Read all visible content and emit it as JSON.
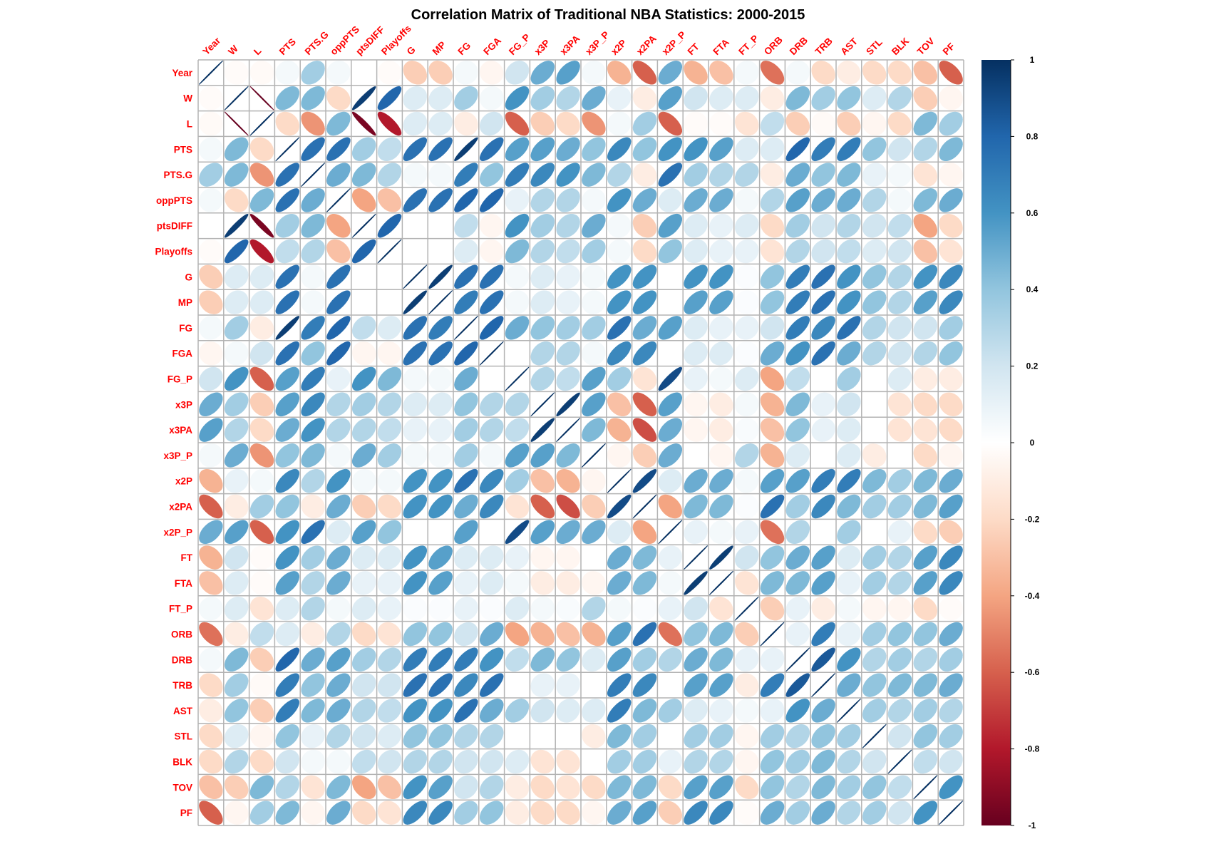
{
  "chart_data": {
    "type": "heatmap",
    "title": "Correlation Matrix of Traditional NBA Statistics: 2000-2015",
    "glyph": "ellipse",
    "variables": [
      "Year",
      "W",
      "L",
      "PTS",
      "PTS.G",
      "oppPTS",
      "ptsDIFF",
      "Playoffs",
      "G",
      "MP",
      "FG",
      "FGA",
      "FG_P",
      "x3P",
      "x3PA",
      "x3P_P",
      "x2P",
      "x2PA",
      "x2P_P",
      "FT",
      "FTA",
      "FT_P",
      "ORB",
      "DRB",
      "TRB",
      "AST",
      "STL",
      "BLK",
      "TOV",
      "PF"
    ],
    "matrix": [
      [
        1,
        -0.02,
        -0.03,
        0.05,
        0.35,
        0.05,
        0,
        -0.02,
        -0.25,
        -0.25,
        0.05,
        -0.05,
        0.2,
        0.5,
        0.55,
        0.05,
        -0.35,
        -0.6,
        0.5,
        -0.35,
        -0.3,
        0.05,
        -0.55,
        0.05,
        -0.2,
        -0.1,
        -0.2,
        -0.2,
        -0.3,
        -0.6
      ],
      [
        -0.02,
        1,
        -1,
        0.45,
        0.45,
        -0.2,
        0.95,
        0.8,
        0.15,
        0.15,
        0.35,
        0.05,
        0.6,
        0.35,
        0.3,
        0.5,
        0.1,
        -0.1,
        0.55,
        0.2,
        0.15,
        0.15,
        -0.1,
        0.45,
        0.35,
        0.4,
        0.15,
        0.3,
        -0.25,
        -0.05
      ],
      [
        -0.03,
        -1,
        1,
        -0.2,
        -0.45,
        0.45,
        -0.95,
        -0.8,
        0.15,
        0.15,
        -0.1,
        0.2,
        -0.6,
        -0.25,
        -0.2,
        -0.45,
        0.05,
        0.35,
        -0.6,
        -0.02,
        -0.02,
        -0.15,
        0.25,
        -0.25,
        -0.03,
        -0.25,
        -0.05,
        -0.2,
        0.45,
        0.35
      ],
      [
        0.05,
        0.45,
        -0.2,
        1,
        0.75,
        0.75,
        0.35,
        0.25,
        0.75,
        0.75,
        0.95,
        0.75,
        0.55,
        0.55,
        0.5,
        0.4,
        0.65,
        0.4,
        0.6,
        0.6,
        0.55,
        0.15,
        0.15,
        0.8,
        0.7,
        0.7,
        0.4,
        0.2,
        0.3,
        0.45
      ],
      [
        0.35,
        0.45,
        -0.45,
        0.75,
        1,
        0.5,
        0.45,
        0.3,
        0.05,
        0.05,
        0.7,
        0.4,
        0.7,
        0.65,
        0.6,
        0.45,
        0.3,
        -0.1,
        0.75,
        0.35,
        0.3,
        0.3,
        -0.1,
        0.5,
        0.4,
        0.45,
        0.1,
        0.05,
        -0.15,
        -0.05
      ],
      [
        0.05,
        -0.2,
        0.45,
        0.75,
        0.5,
        1,
        -0.4,
        -0.3,
        0.75,
        0.75,
        0.8,
        0.8,
        0.1,
        0.3,
        0.3,
        0.05,
        0.6,
        0.5,
        0.15,
        0.5,
        0.5,
        0.05,
        0.3,
        0.55,
        0.5,
        0.5,
        0.3,
        0.05,
        0.45,
        0.5
      ],
      [
        0,
        0.95,
        -0.95,
        0.35,
        0.45,
        -0.4,
        1,
        0.8,
        0,
        0,
        0.25,
        -0.05,
        0.6,
        0.35,
        0.3,
        0.5,
        0.05,
        -0.25,
        0.55,
        0.15,
        0.1,
        0.15,
        -0.2,
        0.35,
        0.2,
        0.3,
        0.2,
        0.25,
        -0.4,
        -0.2
      ],
      [
        -0.02,
        0.8,
        -0.8,
        0.25,
        0.3,
        -0.3,
        0.8,
        1,
        0,
        0,
        0.15,
        -0.05,
        0.45,
        0.3,
        0.25,
        0.35,
        0.05,
        -0.2,
        0.4,
        0.15,
        0.1,
        0.1,
        -0.15,
        0.3,
        0.2,
        0.25,
        0.15,
        0.2,
        -0.3,
        -0.15
      ],
      [
        -0.25,
        0.15,
        0.15,
        0.75,
        0.05,
        0.75,
        0,
        0,
        1,
        0.95,
        0.75,
        0.75,
        0.05,
        0.15,
        0.1,
        0.05,
        0.6,
        0.6,
        0,
        0.6,
        0.6,
        0.02,
        0.4,
        0.7,
        0.75,
        0.6,
        0.4,
        0.3,
        0.6,
        0.65
      ],
      [
        -0.25,
        0.15,
        0.15,
        0.75,
        0.05,
        0.75,
        0,
        0,
        0.95,
        1,
        0.7,
        0.75,
        0.05,
        0.15,
        0.1,
        0.05,
        0.6,
        0.6,
        0,
        0.55,
        0.55,
        0.02,
        0.4,
        0.7,
        0.75,
        0.6,
        0.4,
        0.3,
        0.55,
        0.65
      ],
      [
        0.05,
        0.35,
        -0.1,
        0.95,
        0.7,
        0.8,
        0.25,
        0.15,
        0.75,
        0.7,
        1,
        0.8,
        0.5,
        0.4,
        0.35,
        0.35,
        0.75,
        0.5,
        0.55,
        0.15,
        0.1,
        0.1,
        0.2,
        0.7,
        0.65,
        0.75,
        0.3,
        0.2,
        0.2,
        0.35
      ],
      [
        -0.05,
        0.05,
        0.2,
        0.75,
        0.4,
        0.8,
        -0.05,
        -0.05,
        0.75,
        0.75,
        0.8,
        1,
        0,
        0.3,
        0.3,
        0.05,
        0.65,
        0.65,
        0,
        0.15,
        0.15,
        0.02,
        0.5,
        0.6,
        0.75,
        0.5,
        0.3,
        0.2,
        0.3,
        0.4
      ],
      [
        0.2,
        0.6,
        -0.6,
        0.55,
        0.7,
        0.1,
        0.6,
        0.45,
        0.05,
        0.05,
        0.5,
        0,
        1,
        0.3,
        0.25,
        0.55,
        0.35,
        -0.15,
        0.9,
        0.1,
        0.05,
        0.15,
        -0.4,
        0.25,
        0,
        0.35,
        0,
        0.15,
        -0.1,
        -0.1
      ],
      [
        0.5,
        0.35,
        -0.25,
        0.55,
        0.65,
        0.3,
        0.35,
        0.3,
        0.15,
        0.15,
        0.4,
        0.3,
        0.3,
        1,
        0.95,
        0.55,
        -0.3,
        -0.6,
        0.55,
        -0.05,
        -0.1,
        0.05,
        -0.35,
        0.45,
        0.1,
        0.2,
        0,
        -0.15,
        -0.2,
        -0.2
      ],
      [
        0.55,
        0.3,
        -0.2,
        0.5,
        0.6,
        0.3,
        0.3,
        0.25,
        0.1,
        0.1,
        0.35,
        0.3,
        0.25,
        0.95,
        1,
        0.45,
        -0.35,
        -0.65,
        0.5,
        -0.05,
        -0.1,
        0.03,
        -0.3,
        0.4,
        0.1,
        0.15,
        0,
        -0.15,
        -0.15,
        -0.2
      ],
      [
        0.05,
        0.5,
        -0.45,
        0.4,
        0.45,
        0.05,
        0.5,
        0.35,
        0.05,
        0.05,
        0.35,
        0.05,
        0.55,
        0.55,
        0.45,
        1,
        -0.05,
        -0.25,
        0.5,
        0,
        -0.05,
        0.3,
        -0.35,
        0.15,
        0,
        0.15,
        -0.1,
        0,
        -0.2,
        -0.05
      ],
      [
        -0.35,
        0.1,
        0.05,
        0.65,
        0.3,
        0.6,
        0.05,
        0.05,
        0.6,
        0.6,
        0.75,
        0.65,
        0.35,
        -0.3,
        -0.35,
        -0.05,
        1,
        0.9,
        0.15,
        0.5,
        0.5,
        0.05,
        0.55,
        0.55,
        0.7,
        0.7,
        0.45,
        0.35,
        0.45,
        0.5
      ],
      [
        -0.6,
        -0.1,
        0.35,
        0.4,
        -0.1,
        0.5,
        -0.25,
        -0.2,
        0.6,
        0.6,
        0.5,
        0.65,
        -0.15,
        -0.6,
        -0.65,
        -0.25,
        0.9,
        1,
        -0.4,
        0.45,
        0.45,
        0.02,
        0.75,
        0.35,
        0.65,
        0.45,
        0.35,
        0.35,
        0.45,
        0.55
      ],
      [
        0.5,
        0.55,
        -0.6,
        0.6,
        0.75,
        0.15,
        0.55,
        0.4,
        0,
        0,
        0.55,
        0,
        0.9,
        0.55,
        0.5,
        0.5,
        0.15,
        -0.4,
        1,
        0.1,
        0.05,
        0.1,
        -0.55,
        0.3,
        0,
        0.35,
        0,
        0.1,
        -0.2,
        -0.25
      ],
      [
        -0.35,
        0.2,
        -0.02,
        0.6,
        0.35,
        0.5,
        0.15,
        0.15,
        0.6,
        0.55,
        0.15,
        0.15,
        0.1,
        -0.05,
        -0.05,
        0,
        0.5,
        0.45,
        0.1,
        1,
        0.95,
        0.2,
        0.4,
        0.5,
        0.55,
        0.15,
        0.35,
        0.3,
        0.55,
        0.65
      ],
      [
        -0.3,
        0.15,
        -0.02,
        0.55,
        0.3,
        0.5,
        0.1,
        0.1,
        0.6,
        0.55,
        0.1,
        0.15,
        0.05,
        -0.1,
        -0.1,
        -0.05,
        0.5,
        0.45,
        0.05,
        0.95,
        1,
        -0.15,
        0.45,
        0.45,
        0.55,
        0.1,
        0.35,
        0.3,
        0.55,
        0.65
      ],
      [
        0.05,
        0.15,
        -0.15,
        0.15,
        0.3,
        0.05,
        0.15,
        0.1,
        0.02,
        0.02,
        0.1,
        0.02,
        0.15,
        0.05,
        0.03,
        0.3,
        0.05,
        0.02,
        0.1,
        0.2,
        -0.15,
        1,
        -0.25,
        0.1,
        -0.1,
        0.05,
        -0.05,
        -0.05,
        -0.2,
        -0.02
      ],
      [
        -0.55,
        -0.1,
        0.25,
        0.15,
        -0.1,
        0.3,
        -0.2,
        -0.15,
        0.4,
        0.4,
        0.2,
        0.5,
        -0.4,
        -0.35,
        -0.3,
        -0.35,
        0.55,
        0.75,
        -0.55,
        0.4,
        0.45,
        -0.25,
        1,
        0.1,
        0.7,
        0.1,
        0.35,
        0.4,
        0.4,
        0.5
      ],
      [
        0.05,
        0.45,
        -0.25,
        0.8,
        0.5,
        0.55,
        0.35,
        0.3,
        0.7,
        0.7,
        0.7,
        0.6,
        0.25,
        0.45,
        0.4,
        0.15,
        0.55,
        0.35,
        0.3,
        0.5,
        0.45,
        0.1,
        0.1,
        1,
        0.85,
        0.6,
        0.3,
        0.35,
        0.3,
        0.35
      ],
      [
        -0.2,
        0.35,
        -0.03,
        0.7,
        0.4,
        0.5,
        0.2,
        0.2,
        0.75,
        0.75,
        0.65,
        0.75,
        0,
        0.1,
        0.1,
        0,
        0.7,
        0.65,
        0,
        0.55,
        0.55,
        -0.1,
        0.7,
        0.85,
        1,
        0.5,
        0.4,
        0.45,
        0.45,
        0.5
      ],
      [
        -0.1,
        0.4,
        -0.25,
        0.7,
        0.45,
        0.5,
        0.3,
        0.25,
        0.6,
        0.6,
        0.75,
        0.5,
        0.35,
        0.2,
        0.15,
        0.15,
        0.7,
        0.45,
        0.35,
        0.15,
        0.1,
        0.05,
        0.1,
        0.6,
        0.5,
        1,
        0.35,
        0.3,
        0.35,
        0.3
      ],
      [
        -0.2,
        0.15,
        -0.05,
        0.4,
        0.1,
        0.3,
        0.2,
        0.15,
        0.4,
        0.4,
        0.3,
        0.3,
        0,
        0,
        0,
        -0.1,
        0.45,
        0.35,
        0,
        0.35,
        0.35,
        -0.05,
        0.35,
        0.3,
        0.4,
        0.35,
        1,
        0.2,
        0.4,
        0.35
      ],
      [
        -0.2,
        0.3,
        -0.2,
        0.2,
        0.05,
        0.05,
        0.25,
        0.2,
        0.3,
        0.3,
        0.2,
        0.2,
        0.15,
        -0.15,
        -0.15,
        0,
        0.35,
        0.35,
        0.1,
        0.3,
        0.3,
        -0.05,
        0.4,
        0.35,
        0.45,
        0.3,
        0.2,
        1,
        0.25,
        0.2
      ],
      [
        -0.3,
        -0.25,
        0.45,
        0.3,
        -0.15,
        0.45,
        -0.4,
        -0.3,
        0.6,
        0.55,
        0.2,
        0.3,
        -0.1,
        -0.2,
        -0.15,
        -0.2,
        0.45,
        0.45,
        -0.2,
        0.55,
        0.55,
        -0.2,
        0.4,
        0.3,
        0.45,
        0.35,
        0.4,
        0.25,
        1,
        0.6
      ],
      [
        -0.6,
        -0.05,
        0.35,
        0.45,
        -0.05,
        0.5,
        -0.2,
        -0.15,
        0.65,
        0.65,
        0.35,
        0.4,
        -0.1,
        -0.2,
        -0.2,
        -0.05,
        0.5,
        0.55,
        -0.25,
        0.65,
        0.65,
        -0.02,
        0.5,
        0.35,
        0.5,
        0.3,
        0.35,
        0.2,
        0.6,
        1
      ]
    ],
    "colorbar": {
      "ticks": [
        "1",
        "0.8",
        "0.6",
        "0.4",
        "0.2",
        "0",
        "-0.2",
        "-0.4",
        "-0.6",
        "-0.8",
        "-1"
      ],
      "range": [
        -1,
        1
      ]
    },
    "colors": {
      "label": "#ff0000",
      "scale": [
        "#67001f",
        "#b2182b",
        "#d6604d",
        "#f4a582",
        "#fddbc7",
        "#ffffff",
        "#d1e5f0",
        "#92c5de",
        "#4393c3",
        "#2166ac",
        "#053061"
      ],
      "grid": "#b3b3b3"
    }
  }
}
